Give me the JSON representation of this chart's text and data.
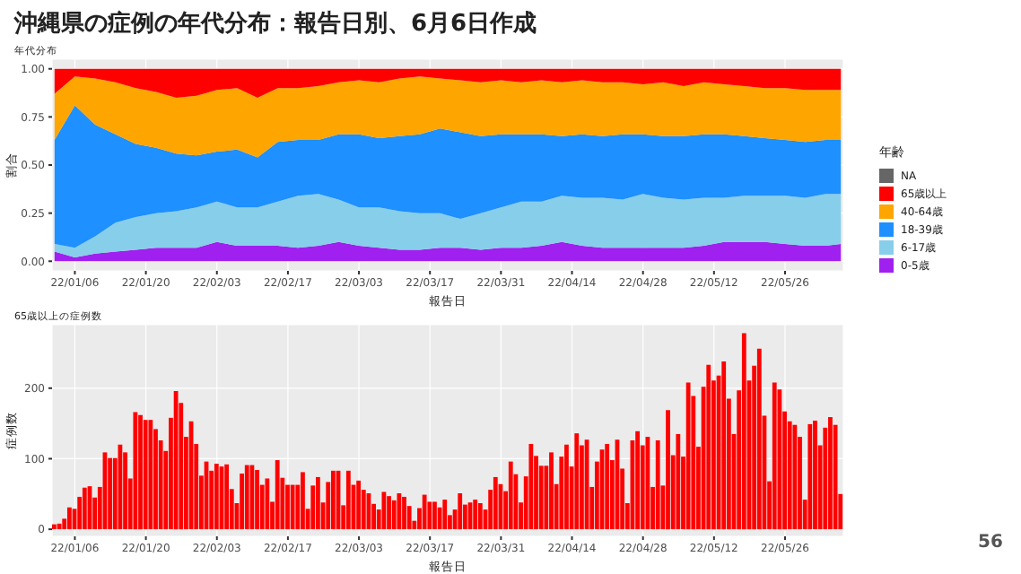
{
  "chart_data": [
    {
      "type": "area",
      "stacked": true,
      "title": "沖縄県の症例の年代分布：報告日別、6月6日作成",
      "subtitle": "年代分布",
      "xlabel": "報告日",
      "ylabel": "割合",
      "legend_title": "年齢",
      "legend": "right",
      "grid": true,
      "x": [
        "--01-02",
        "--01-06",
        "--01-10",
        "--01-14",
        "--01-18",
        "--01-22",
        "--01-26",
        "--01-30",
        "--02-03",
        "--02-07",
        "--02-11",
        "--02-15",
        "--02-19",
        "--02-23",
        "--02-27",
        "--03-03",
        "--03-07",
        "--03-11",
        "--03-15",
        "--03-19",
        "--03-23",
        "--03-27",
        "--03-31",
        "--04-04",
        "--04-08",
        "--04-12",
        "--04-16",
        "--04-20",
        "--04-24",
        "--04-28",
        "--05-02",
        "--05-06",
        "--05-10",
        "--05-14",
        "--05-18",
        "--05-22",
        "--05-26",
        "--05-30",
        "--06-03",
        "--06-06"
      ],
      "xlim": [
        "--01-01T12:00",
        "--06-06T12:00"
      ],
      "xticks": [
        {
          "value": "--01-06",
          "label": "22/01/06"
        },
        {
          "value": "--01-20",
          "label": "22/01/20"
        },
        {
          "value": "--02-03",
          "label": "22/02/03"
        },
        {
          "value": "--02-17",
          "label": "22/02/17"
        },
        {
          "value": "--03-03",
          "label": "22/03/03"
        },
        {
          "value": "--03-17",
          "label": "22/03/17"
        },
        {
          "value": "--03-31",
          "label": "22/03/31"
        },
        {
          "value": "--04-14",
          "label": "22/04/14"
        },
        {
          "value": "--04-28",
          "label": "22/04/28"
        },
        {
          "value": "--05-12",
          "label": "22/05/12"
        },
        {
          "value": "--05-26",
          "label": "22/05/26"
        }
      ],
      "ylim": [
        -0.05,
        1.05
      ],
      "yticks": [
        {
          "value": 0,
          "label": "0.00"
        },
        {
          "value": 0.25,
          "label": "0.25"
        },
        {
          "value": 0.5,
          "label": "0.50"
        },
        {
          "value": 0.75,
          "label": "0.75"
        },
        {
          "value": 1,
          "label": "1.00"
        }
      ],
      "series": [
        {
          "name": "0-5歳",
          "color": "#a020f0",
          "values": [
            0.05,
            0.02,
            0.04,
            0.05,
            0.06,
            0.07,
            0.07,
            0.07,
            0.1,
            0.08,
            0.08,
            0.08,
            0.07,
            0.08,
            0.1,
            0.08,
            0.07,
            0.06,
            0.06,
            0.07,
            0.07,
            0.06,
            0.07,
            0.07,
            0.08,
            0.1,
            0.08,
            0.07,
            0.07,
            0.07,
            0.07,
            0.07,
            0.08,
            0.1,
            0.1,
            0.1,
            0.09,
            0.08,
            0.08,
            0.09
          ]
        },
        {
          "name": "6-17歳",
          "color": "#87ceeb",
          "values": [
            0.04,
            0.05,
            0.09,
            0.15,
            0.17,
            0.18,
            0.19,
            0.21,
            0.21,
            0.2,
            0.2,
            0.23,
            0.27,
            0.27,
            0.22,
            0.2,
            0.21,
            0.2,
            0.19,
            0.18,
            0.15,
            0.19,
            0.21,
            0.24,
            0.23,
            0.24,
            0.25,
            0.26,
            0.25,
            0.28,
            0.26,
            0.25,
            0.25,
            0.23,
            0.24,
            0.24,
            0.25,
            0.25,
            0.27,
            0.26
          ]
        },
        {
          "name": "18-39歳",
          "color": "#1e90ff",
          "values": [
            0.54,
            0.74,
            0.58,
            0.46,
            0.38,
            0.34,
            0.3,
            0.27,
            0.26,
            0.3,
            0.26,
            0.31,
            0.29,
            0.28,
            0.34,
            0.38,
            0.36,
            0.39,
            0.41,
            0.44,
            0.45,
            0.4,
            0.38,
            0.35,
            0.35,
            0.31,
            0.33,
            0.32,
            0.34,
            0.31,
            0.32,
            0.33,
            0.33,
            0.33,
            0.31,
            0.3,
            0.29,
            0.29,
            0.28,
            0.28
          ]
        },
        {
          "name": "40-64歳",
          "color": "#ffa500",
          "values": [
            0.24,
            0.15,
            0.24,
            0.27,
            0.29,
            0.29,
            0.29,
            0.31,
            0.32,
            0.32,
            0.31,
            0.28,
            0.27,
            0.28,
            0.27,
            0.28,
            0.29,
            0.3,
            0.3,
            0.26,
            0.27,
            0.28,
            0.28,
            0.27,
            0.28,
            0.28,
            0.28,
            0.28,
            0.27,
            0.26,
            0.28,
            0.26,
            0.27,
            0.26,
            0.26,
            0.26,
            0.27,
            0.27,
            0.26,
            0.26
          ]
        },
        {
          "name": "65歳以上",
          "color": "#ff0000",
          "values": [
            0.13,
            0.04,
            0.05,
            0.07,
            0.1,
            0.12,
            0.15,
            0.14,
            0.11,
            0.1,
            0.15,
            0.1,
            0.1,
            0.09,
            0.07,
            0.06,
            0.07,
            0.05,
            0.04,
            0.05,
            0.06,
            0.07,
            0.06,
            0.07,
            0.06,
            0.07,
            0.06,
            0.07,
            0.07,
            0.08,
            0.07,
            0.09,
            0.07,
            0.08,
            0.09,
            0.1,
            0.1,
            0.11,
            0.11,
            0.11
          ]
        },
        {
          "name": "NA",
          "color": "#666666",
          "values": [
            null,
            null,
            null,
            null,
            null,
            null,
            null,
            null,
            null,
            null,
            null,
            null,
            null,
            null,
            null,
            null,
            null,
            null,
            null,
            null,
            null,
            null,
            null,
            null,
            null,
            null,
            null,
            null,
            null,
            null,
            null,
            null,
            null,
            null,
            null,
            null,
            null,
            null,
            null,
            null
          ]
        }
      ]
    },
    {
      "type": "bar",
      "subtitle": "65歳以上の症例数",
      "xlabel": "報告日",
      "ylabel": "症例数",
      "grid": true,
      "color": "#ff0000",
      "annotations": [
        "56"
      ],
      "x": [
        "--01-02",
        "--01-03",
        "--01-04",
        "--01-05",
        "--01-06",
        "--01-07",
        "--01-08",
        "--01-09",
        "--01-10",
        "--01-11",
        "--01-12",
        "--01-13",
        "--01-14",
        "--01-15",
        "--01-16",
        "--01-17",
        "--01-18",
        "--01-19",
        "--01-20",
        "--01-21",
        "--01-22",
        "--01-23",
        "--01-24",
        "--01-25",
        "--01-26",
        "--01-27",
        "--01-28",
        "--01-29",
        "--01-30",
        "--01-31",
        "--02-01",
        "--02-02",
        "--02-03",
        "--02-04",
        "--02-05",
        "--02-06",
        "--02-07",
        "--02-08",
        "--02-09",
        "--02-10",
        "--02-11",
        "--02-12",
        "--02-13",
        "--02-14",
        "--02-15",
        "--02-16",
        "--02-17",
        "--02-18",
        "--02-19",
        "--02-20",
        "--02-21",
        "--02-22",
        "--02-23",
        "--02-24",
        "--02-25",
        "--02-26",
        "--02-27",
        "--02-28",
        "--03-01",
        "--03-02",
        "--03-03",
        "--03-04",
        "--03-05",
        "--03-06",
        "--03-07",
        "--03-08",
        "--03-09",
        "--03-10",
        "--03-11",
        "--03-12",
        "--03-13",
        "--03-14",
        "--03-15",
        "--03-16",
        "--03-17",
        "--03-18",
        "--03-19",
        "--03-20",
        "--03-21",
        "--03-22",
        "--03-23",
        "--03-24",
        "--03-25",
        "--03-26",
        "--03-27",
        "--03-28",
        "--03-29",
        "--03-30",
        "--03-31",
        "--04-01",
        "--04-02",
        "--04-03",
        "--04-04",
        "--04-05",
        "--04-06",
        "--04-07",
        "--04-08",
        "--04-09",
        "--04-10",
        "--04-11",
        "--04-12",
        "--04-13",
        "--04-14",
        "--04-15",
        "--04-16",
        "--04-17",
        "--04-18",
        "--04-19",
        "--04-20",
        "--04-21",
        "--04-22",
        "--04-23",
        "--04-24",
        "--04-25",
        "--04-26",
        "--04-27",
        "--04-28",
        "--04-29",
        "--04-30",
        "--05-01",
        "--05-02",
        "--05-03",
        "--05-04",
        "--05-05",
        "--05-06",
        "--05-07",
        "--05-08",
        "--05-09",
        "--05-10",
        "--05-11",
        "--05-12",
        "--05-13",
        "--05-14",
        "--05-15",
        "--05-16",
        "--05-17",
        "--05-18",
        "--05-19",
        "--05-20",
        "--05-21",
        "--05-22",
        "--05-23",
        "--05-24",
        "--05-25",
        "--05-26",
        "--05-27",
        "--05-28",
        "--05-29",
        "--05-30",
        "--05-31",
        "--06-01",
        "--06-02",
        "--06-03",
        "--06-04",
        "--06-05",
        "--06-06"
      ],
      "values": [
        7,
        8,
        15,
        31,
        29,
        46,
        59,
        61,
        45,
        60,
        109,
        101,
        101,
        120,
        109,
        72,
        166,
        162,
        155,
        155,
        142,
        126,
        111,
        158,
        196,
        179,
        131,
        153,
        121,
        76,
        96,
        83,
        93,
        89,
        92,
        57,
        37,
        79,
        91,
        91,
        84,
        63,
        72,
        39,
        98,
        73,
        63,
        63,
        63,
        81,
        29,
        62,
        74,
        38,
        67,
        83,
        83,
        34,
        83,
        63,
        69,
        56,
        51,
        36,
        28,
        53,
        47,
        41,
        51,
        46,
        33,
        12,
        30,
        49,
        39,
        39,
        31,
        42,
        20,
        28,
        51,
        35,
        38,
        42,
        37,
        28,
        56,
        74,
        64,
        54,
        96,
        78,
        38,
        75,
        121,
        104,
        90,
        90,
        109,
        64,
        103,
        120,
        89,
        136,
        119,
        127,
        60,
        96,
        113,
        121,
        98,
        127,
        86,
        37,
        126,
        139,
        119,
        131,
        60,
        126,
        62,
        169,
        105,
        135,
        103,
        208,
        189,
        117,
        202,
        233,
        211,
        218,
        238,
        185,
        135,
        197,
        278,
        211,
        232,
        256,
        161,
        68,
        208,
        198,
        167,
        153,
        148,
        131,
        42,
        149,
        154,
        119,
        144,
        159,
        148,
        50
      ],
      "xlim": [
        "--01-01T12:00",
        "--06-06T12:00"
      ],
      "xticks": [
        {
          "value": "--01-06",
          "label": "22/01/06"
        },
        {
          "value": "--01-20",
          "label": "22/01/20"
        },
        {
          "value": "--02-03",
          "label": "22/02/03"
        },
        {
          "value": "--02-17",
          "label": "22/02/17"
        },
        {
          "value": "--03-03",
          "label": "22/03/03"
        },
        {
          "value": "--03-17",
          "label": "22/03/17"
        },
        {
          "value": "--03-31",
          "label": "22/03/31"
        },
        {
          "value": "--04-14",
          "label": "22/04/14"
        },
        {
          "value": "--04-28",
          "label": "22/04/28"
        },
        {
          "value": "--05-12",
          "label": "22/05/12"
        },
        {
          "value": "--05-26",
          "label": "22/05/26"
        }
      ],
      "ylim": [
        -10,
        290
      ],
      "yticks": [
        0,
        100,
        200
      ]
    }
  ]
}
